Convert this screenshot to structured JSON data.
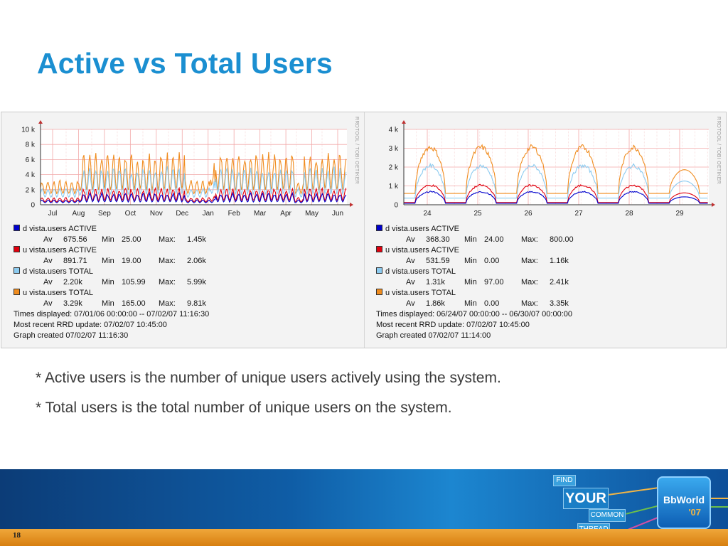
{
  "slide": {
    "title": "Active vs Total Users",
    "page_number": "18",
    "bullets": [
      "* Active users is the number of unique users actively using the system.",
      "* Total users is the total number of unique users on the system."
    ],
    "logo": {
      "words": [
        "FIND",
        "YOUR",
        "COMMON",
        "THREAD"
      ],
      "brand_line1": "BbWorld",
      "brand_line2": "'07"
    },
    "rrdtool_label": "RRDTOOL / TOBI OETIKER"
  },
  "colors": {
    "title": "#1b8fd1",
    "d_active": "#0000cc",
    "u_active": "#e0000e",
    "d_total": "#8ccbf0",
    "u_total": "#f08c1e",
    "grid": "#f2a9a9"
  },
  "chart_data": [
    {
      "type": "line",
      "x_tick_labels": [
        "Jul",
        "Aug",
        "Sep",
        "Oct",
        "Nov",
        "Dec",
        "Jan",
        "Feb",
        "Mar",
        "Apr",
        "May",
        "Jun"
      ],
      "y_tick_labels": [
        "10 k",
        "8 k",
        "6 k",
        "4 k",
        "2 k",
        "0"
      ],
      "ylim": [
        0,
        10000
      ],
      "grid": true,
      "series": [
        {
          "name": "d vista.users ACTIVE",
          "color": "#0000cc",
          "av": "675.56",
          "min": "25.00",
          "max": "1.45k"
        },
        {
          "name": "u vista.users ACTIVE",
          "color": "#e0000e",
          "av": "891.71",
          "min": "19.00",
          "max": "2.06k"
        },
        {
          "name": "d vista.users TOTAL",
          "color": "#8ccbf0",
          "av": "2.20k",
          "min": "105.99",
          "max": "5.99k"
        },
        {
          "name": "u vista.users TOTAL",
          "color": "#f08c1e",
          "av": "3.29k",
          "min": "165.00",
          "max": "9.81k"
        }
      ],
      "footer": [
        "Times displayed: 07/01/06 00:00:00 -- 07/02/07 11:16:30",
        "Most recent RRD update:  07/02/07 10:45:00",
        "Graph created 07/02/07 11:16:30"
      ]
    },
    {
      "type": "line",
      "x_tick_labels": [
        "24",
        "25",
        "26",
        "27",
        "28",
        "29"
      ],
      "y_tick_labels": [
        "4 k",
        "3 k",
        "2 k",
        "1 k",
        "0"
      ],
      "ylim": [
        0,
        4000
      ],
      "grid": true,
      "series": [
        {
          "name": "d vista.users ACTIVE",
          "color": "#0000cc",
          "av": "368.30",
          "min": "24.00",
          "max": "800.00"
        },
        {
          "name": "u vista.users ACTIVE",
          "color": "#e0000e",
          "av": "531.59",
          "min": "0.00",
          "max": "1.16k"
        },
        {
          "name": "d vista.users TOTAL",
          "color": "#8ccbf0",
          "av": "1.31k",
          "min": "97.00",
          "max": "2.41k"
        },
        {
          "name": "u vista.users TOTAL",
          "color": "#f08c1e",
          "av": "1.86k",
          "min": "0.00",
          "max": "3.35k"
        }
      ],
      "footer": [
        "Times displayed: 06/24/07 00:00:00 -- 06/30/07 00:00:00",
        "Most recent RRD update:  07/02/07 10:45:00",
        "Graph created 07/02/07 11:14:00"
      ]
    }
  ]
}
